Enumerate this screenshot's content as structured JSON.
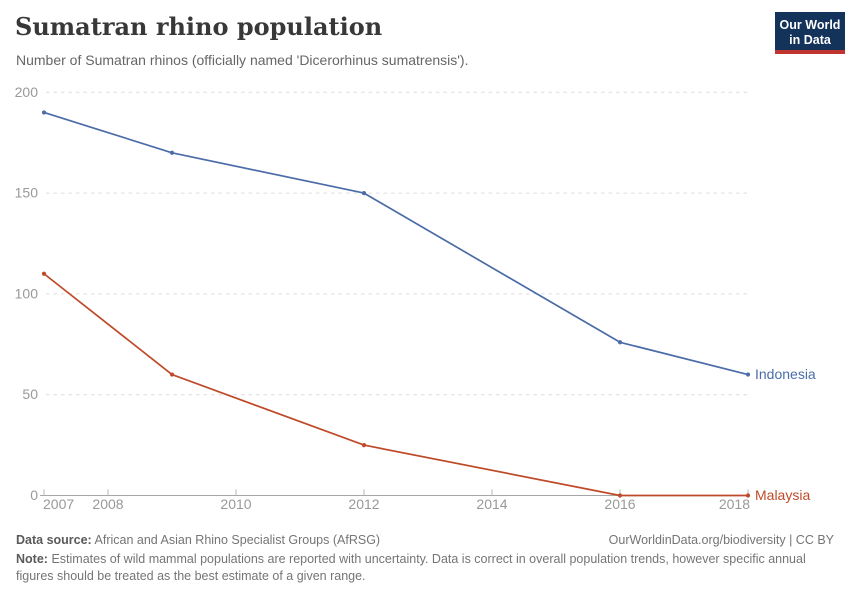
{
  "header": {
    "title": "Sumatran rhino population",
    "subtitle": "Number of Sumatran rhinos (officially named 'Dicerorhinus sumatrensis').",
    "logo": {
      "line1": "Our World",
      "line2": "in Data",
      "bg_color": "#13335a",
      "bar_color": "#c0352f"
    }
  },
  "chart_data": {
    "type": "line",
    "x": [
      2007,
      2009,
      2012,
      2016,
      2018
    ],
    "series": [
      {
        "name": "Indonesia",
        "values": [
          190,
          170,
          150,
          76,
          60
        ],
        "color": "#4c6ca8"
      },
      {
        "name": "Malaysia",
        "values": [
          110,
          60,
          25,
          0,
          0
        ],
        "color": "#be4a29"
      }
    ],
    "xticks": [
      2007,
      2008,
      2010,
      2012,
      2014,
      2016,
      2018
    ],
    "yticks": [
      0,
      50,
      100,
      150,
      200
    ],
    "xlim": [
      2007,
      2018
    ],
    "ylim": [
      0,
      200
    ],
    "grid": "horizontal dashed",
    "legend": "labels at line ends",
    "marker": "dot on each data point",
    "axis_colors": {
      "gridline": "#dcdcdc",
      "axis_line": "#a6a6a6",
      "tick": "#b5b5b5",
      "tick_label": "#999999"
    }
  },
  "footer": {
    "data_source_label": "Data source:",
    "data_source_value": "African and Asian Rhino Specialist Groups (AfRSG)",
    "attribution": "OurWorldinData.org/biodiversity | CC BY",
    "note_label": "Note:",
    "note_text": "Estimates of wild mammal populations are reported with uncertainty. Data is correct in overall population trends, however specific annual figures should be treated as the best estimate of a given range."
  }
}
